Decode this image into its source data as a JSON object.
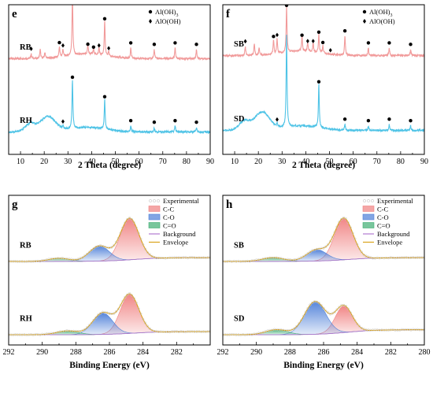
{
  "chart_data": [
    {
      "type": "line",
      "panel": "e",
      "xlabel": "2 Theta (degree)",
      "xlim": [
        5,
        90
      ],
      "xticks": [
        10,
        20,
        30,
        40,
        50,
        60,
        70,
        80,
        90
      ],
      "legend": [
        {
          "symbol": "circle",
          "label": "Al(OH)",
          "sub": "3"
        },
        {
          "symbol": "diamond",
          "label": "AlO(OH)",
          "sub": ""
        }
      ],
      "series": [
        {
          "name": "RB",
          "color": "#f19a9a",
          "baseline": 0.64,
          "hump_amp": 0.0,
          "peaks": [
            [
              14.5,
              0.03
            ],
            [
              18.3,
              0.06
            ],
            [
              20.3,
              0.04
            ],
            [
              26.4,
              0.07
            ],
            [
              27.9,
              0.05
            ],
            [
              31.9,
              0.4
            ],
            [
              38.4,
              0.06
            ],
            [
              40.8,
              0.04
            ],
            [
              43.1,
              0.05
            ],
            [
              45.5,
              0.23
            ],
            [
              47.2,
              0.03
            ],
            [
              56.5,
              0.07
            ],
            [
              66.4,
              0.06
            ],
            [
              75.2,
              0.07
            ],
            [
              84.2,
              0.06
            ]
          ],
          "markers": [
            {
              "x": 14.5,
              "sym": "diamond"
            },
            {
              "x": 26.4,
              "sym": "circle"
            },
            {
              "x": 27.9,
              "sym": "diamond"
            },
            {
              "x": 31.9,
              "sym": "circle"
            },
            {
              "x": 38.4,
              "sym": "circle"
            },
            {
              "x": 40.8,
              "sym": "circle"
            },
            {
              "x": 43.1,
              "sym": "diamond"
            },
            {
              "x": 45.5,
              "sym": "circle"
            },
            {
              "x": 47.2,
              "sym": "diamond"
            },
            {
              "x": 56.5,
              "sym": "circle"
            },
            {
              "x": 66.4,
              "sym": "circle"
            },
            {
              "x": 75.2,
              "sym": "circle"
            },
            {
              "x": 84.2,
              "sym": "circle"
            }
          ]
        },
        {
          "name": "RH",
          "color": "#4ec3e6",
          "baseline": 0.15,
          "hump_amp": 0.1,
          "peaks": [
            [
              14.3,
              0.02
            ],
            [
              27.9,
              0.02
            ],
            [
              31.9,
              0.33
            ],
            [
              45.5,
              0.2
            ],
            [
              56.5,
              0.04
            ],
            [
              66.4,
              0.03
            ],
            [
              75.2,
              0.04
            ],
            [
              84.2,
              0.03
            ]
          ],
          "markers": [
            {
              "x": 27.9,
              "sym": "diamond"
            },
            {
              "x": 31.9,
              "sym": "circle"
            },
            {
              "x": 45.5,
              "sym": "circle"
            },
            {
              "x": 56.5,
              "sym": "circle"
            },
            {
              "x": 66.4,
              "sym": "circle"
            },
            {
              "x": 75.2,
              "sym": "circle"
            },
            {
              "x": 84.2,
              "sym": "circle"
            }
          ]
        }
      ]
    },
    {
      "type": "line",
      "panel": "f",
      "xlabel": "2 Theta (degree)",
      "xlim": [
        5,
        90
      ],
      "xticks": [
        10,
        20,
        30,
        40,
        50,
        60,
        70,
        80,
        90
      ],
      "legend": [
        {
          "symbol": "circle",
          "label": "Al(OH)",
          "sub": "3"
        },
        {
          "symbol": "diamond",
          "label": "AlO(OH)",
          "sub": ""
        }
      ],
      "series": [
        {
          "name": "SB",
          "color": "#f19a9a",
          "baseline": 0.66,
          "hump_amp": 0.0,
          "peaks": [
            [
              14.5,
              0.06
            ],
            [
              18.3,
              0.08
            ],
            [
              20.3,
              0.05
            ],
            [
              26.4,
              0.09
            ],
            [
              27.9,
              0.1
            ],
            [
              31.9,
              0.3
            ],
            [
              38.4,
              0.1
            ],
            [
              40.8,
              0.06
            ],
            [
              43.1,
              0.06
            ],
            [
              45.5,
              0.12
            ],
            [
              47.2,
              0.05
            ],
            [
              56.5,
              0.13
            ],
            [
              66.4,
              0.05
            ],
            [
              75.2,
              0.05
            ],
            [
              84.2,
              0.04
            ]
          ],
          "markers": [
            {
              "x": 14.5,
              "sym": "diamond"
            },
            {
              "x": 26.4,
              "sym": "circle"
            },
            {
              "x": 27.9,
              "sym": "diamond"
            },
            {
              "x": 31.9,
              "sym": "circle"
            },
            {
              "x": 38.4,
              "sym": "circle"
            },
            {
              "x": 40.8,
              "sym": "diamond"
            },
            {
              "x": 43.1,
              "sym": "diamond"
            },
            {
              "x": 45.5,
              "sym": "circle"
            },
            {
              "x": 47.2,
              "sym": "circle"
            },
            {
              "x": 50.4,
              "sym": "diamond"
            },
            {
              "x": 56.5,
              "sym": "circle"
            },
            {
              "x": 66.4,
              "sym": "circle"
            },
            {
              "x": 75.2,
              "sym": "circle"
            },
            {
              "x": 84.2,
              "sym": "circle"
            }
          ]
        },
        {
          "name": "SD",
          "color": "#4ec3e6",
          "baseline": 0.16,
          "hump_amp": 0.12,
          "peaks": [
            [
              27.9,
              0.02
            ],
            [
              31.9,
              0.62
            ],
            [
              45.5,
              0.29
            ],
            [
              56.5,
              0.04
            ],
            [
              66.4,
              0.03
            ],
            [
              75.2,
              0.04
            ],
            [
              84.2,
              0.03
            ]
          ],
          "markers": [
            {
              "x": 27.9,
              "sym": "diamond"
            },
            {
              "x": 45.5,
              "sym": "circle"
            },
            {
              "x": 56.5,
              "sym": "circle"
            },
            {
              "x": 66.4,
              "sym": "circle"
            },
            {
              "x": 75.2,
              "sym": "circle"
            },
            {
              "x": 84.2,
              "sym": "circle"
            }
          ]
        }
      ]
    },
    {
      "type": "area",
      "panel": "g",
      "xlabel": "Binding Energy (eV)",
      "xlim": [
        292,
        280
      ],
      "xticks": [
        292,
        290,
        288,
        286,
        284,
        282
      ],
      "legend": [
        {
          "label": "Experimental",
          "style": "circles",
          "color": "#c8c8c8"
        },
        {
          "label": "C-C",
          "style": "box",
          "color": "#f08080"
        },
        {
          "label": "C-O",
          "style": "box",
          "color": "#4d7fd8"
        },
        {
          "label": "C=O",
          "style": "box",
          "color": "#3fae72"
        },
        {
          "label": "Background",
          "style": "line",
          "color": "#b07ad0"
        },
        {
          "label": "Envelope",
          "style": "line",
          "color": "#d9a21b"
        }
      ],
      "spectra": [
        {
          "name": "RB",
          "bg": [
            0.02,
            0.08
          ],
          "components": [
            {
              "label": "C-C",
              "center": 284.8,
              "height": 0.66,
              "fwhm": 1.3
            },
            {
              "label": "C-O",
              "center": 286.6,
              "height": 0.24,
              "fwhm": 1.4
            },
            {
              "label": "C=O",
              "center": 289.0,
              "height": 0.05,
              "fwhm": 1.4
            }
          ]
        },
        {
          "name": "RH",
          "bg": [
            0.02,
            0.07
          ],
          "components": [
            {
              "label": "C-C",
              "center": 284.8,
              "height": 0.62,
              "fwhm": 1.3
            },
            {
              "label": "C-O",
              "center": 286.4,
              "height": 0.34,
              "fwhm": 1.4
            },
            {
              "label": "C=O",
              "center": 288.5,
              "height": 0.06,
              "fwhm": 1.5
            }
          ]
        }
      ]
    },
    {
      "type": "area",
      "panel": "h",
      "xlabel": "Binding Energy (eV)",
      "xlim": [
        292,
        280
      ],
      "xticks": [
        292,
        290,
        288,
        286,
        284,
        282,
        280
      ],
      "legend": [
        {
          "label": "Experimental",
          "style": "circles",
          "color": "#c8c8c8"
        },
        {
          "label": "C-C",
          "style": "box",
          "color": "#f08080"
        },
        {
          "label": "C-O",
          "style": "box",
          "color": "#4d7fd8"
        },
        {
          "label": "C=O",
          "style": "box",
          "color": "#3fae72"
        },
        {
          "label": "Background",
          "style": "line",
          "color": "#b07ad0"
        },
        {
          "label": "Envelope",
          "style": "line",
          "color": "#d9a21b"
        }
      ],
      "spectra": [
        {
          "name": "SB",
          "bg": [
            0.02,
            0.08
          ],
          "components": [
            {
              "label": "C-C",
              "center": 284.8,
              "height": 0.66,
              "fwhm": 1.3
            },
            {
              "label": "C-O",
              "center": 286.4,
              "height": 0.18,
              "fwhm": 1.4
            },
            {
              "label": "C=O",
              "center": 289.0,
              "height": 0.06,
              "fwhm": 1.5
            }
          ]
        },
        {
          "name": "SD",
          "bg": [
            0.02,
            0.1
          ],
          "components": [
            {
              "label": "C-C",
              "center": 284.8,
              "height": 0.42,
              "fwhm": 1.2
            },
            {
              "label": "C-O",
              "center": 286.5,
              "height": 0.52,
              "fwhm": 1.5
            },
            {
              "label": "C=O",
              "center": 288.8,
              "height": 0.08,
              "fwhm": 1.5
            }
          ]
        }
      ]
    }
  ]
}
